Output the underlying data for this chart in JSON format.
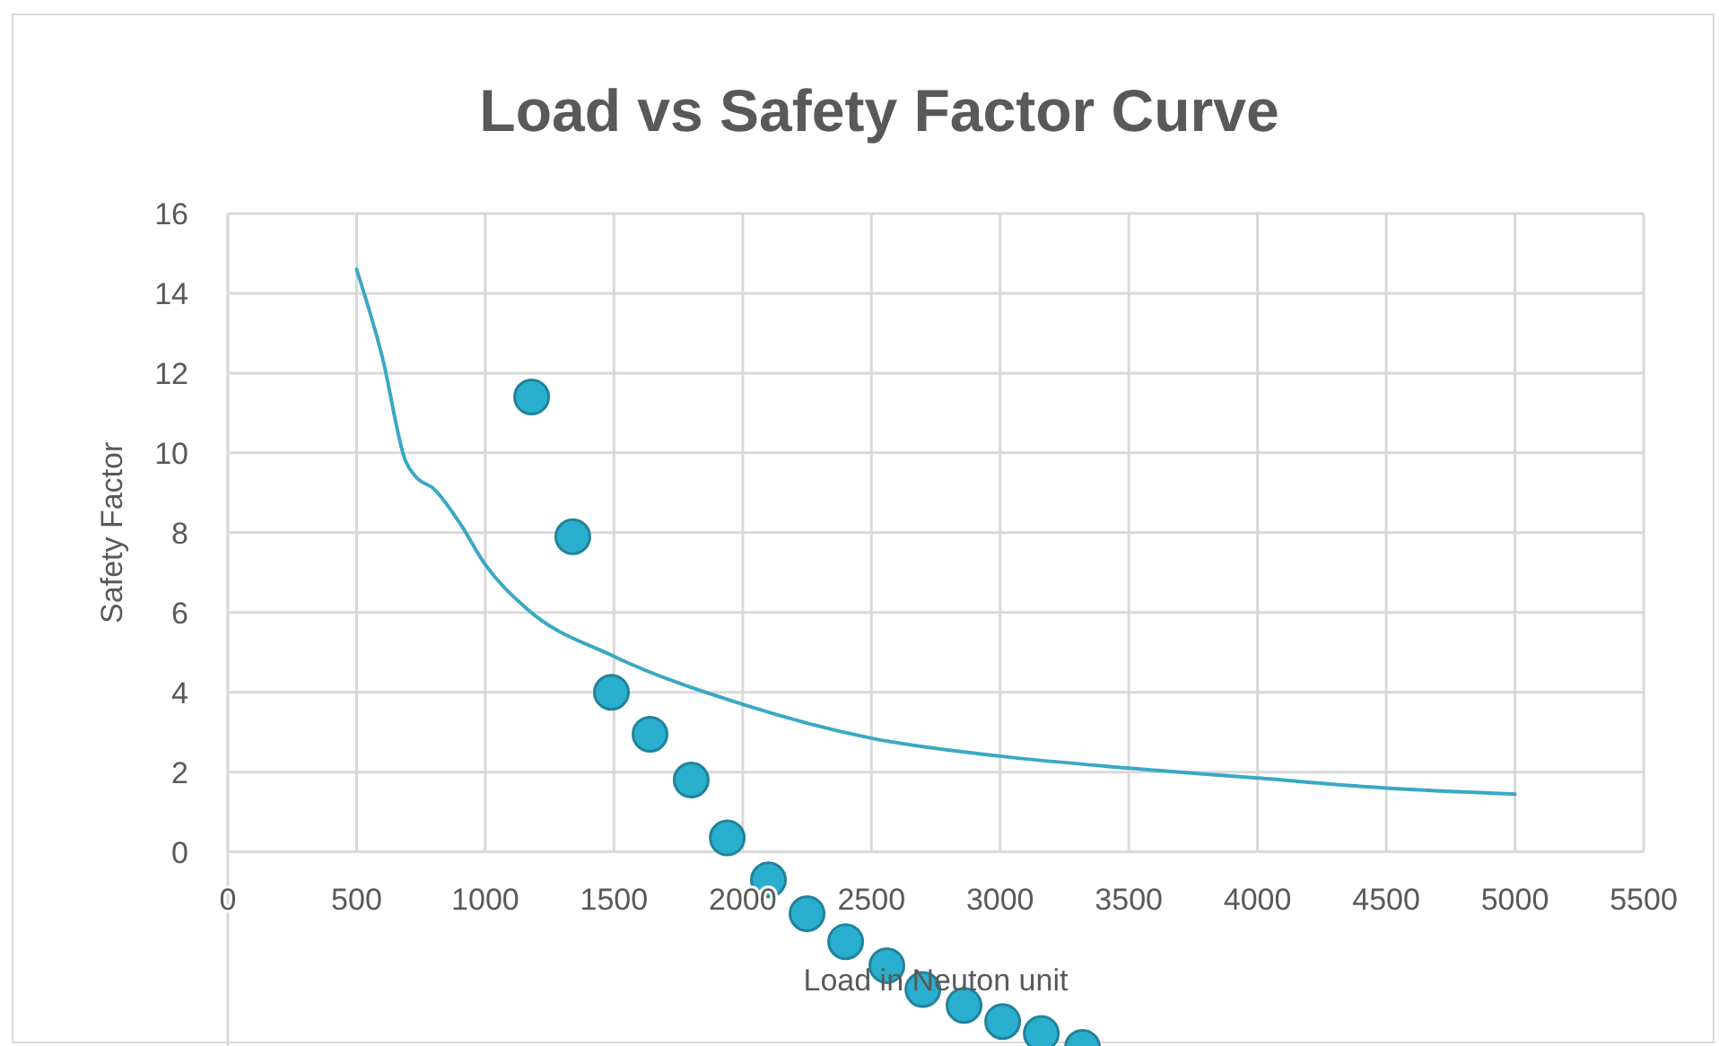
{
  "chart_data": {
    "type": "line",
    "title": "Load vs Safety Factor Curve",
    "xlabel": "Load in Neuton unit",
    "ylabel": "Safety Factor",
    "xlim": [
      0,
      5500
    ],
    "xticks": [
      0,
      500,
      1000,
      1500,
      2000,
      2500,
      3000,
      3500,
      4000,
      4500,
      5000,
      5500
    ],
    "ylim": [
      -5,
      16
    ],
    "yticks": [
      0,
      2,
      4,
      6,
      8,
      10,
      12,
      14,
      16
    ],
    "grid": true,
    "series": [
      {
        "color": "#3aa8c4",
        "marker": "none",
        "line_style": "solid",
        "x": [
          500,
          600,
          690,
          730,
          800,
          900,
          1000,
          1160,
          1500,
          2000,
          2500,
          3000,
          3500,
          4000,
          4500,
          5000
        ],
        "values": [
          14.6,
          12.4,
          9.8,
          9.4,
          9.1,
          8.25,
          7.2,
          6.1,
          4.9,
          3.7,
          2.85,
          2.4,
          2.1,
          1.85,
          1.6,
          1.45
        ]
      },
      {
        "type": "scatter",
        "color": "#2aaecd",
        "marker": "circle",
        "x": [
          1180,
          1340,
          1490,
          1640,
          1800,
          1940,
          2100,
          2250,
          2400,
          2560,
          2700,
          2860,
          3010,
          3160,
          3320
        ],
        "values": [
          11.4,
          7.9,
          4.0,
          2.95,
          1.8,
          0.35,
          -0.7,
          -1.55,
          -2.25,
          -2.85,
          -3.45,
          -3.85,
          -4.25,
          -4.55,
          -4.9
        ]
      }
    ]
  }
}
